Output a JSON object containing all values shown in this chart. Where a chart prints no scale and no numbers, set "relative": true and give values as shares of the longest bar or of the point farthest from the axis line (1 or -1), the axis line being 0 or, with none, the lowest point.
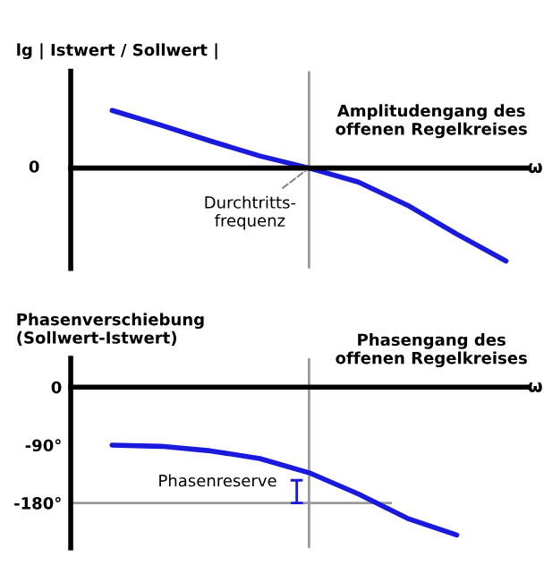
{
  "chart_data": [
    {
      "type": "line",
      "relative": true,
      "ylabel": "lg | Istwert / Sollwert |",
      "xlabel": "ω",
      "title": "Amplitudengang des\noffenen Regelkreises",
      "categories": [
        null,
        null,
        null,
        null,
        null,
        null,
        null,
        null,
        null
      ],
      "series": [
        {
          "color": "#1a1adc",
          "values": [
            0.62,
            0.46,
            0.29,
            0.13,
            0.0,
            -0.15,
            -0.4,
            -0.71,
            -1
          ]
        }
      ],
      "annotations": [
        "0",
        "Durchtritts-\nfrequenz"
      ]
    },
    {
      "type": "line",
      "ylabel": "Phasenverschiebung\n(Sollwert-Istwert)",
      "xlabel": "ω",
      "title": "Phasengang des\noffenen Regelkreises",
      "categories": [
        null,
        null,
        null,
        null,
        null,
        null,
        null,
        null,
        null
      ],
      "series": [
        {
          "color": "#1a1adc",
          "values": [
            -90,
            -92,
            -99,
            -111,
            -133,
            -166,
            -204,
            -230,
            null
          ]
        }
      ],
      "ylim": [
        -250,
        45
      ],
      "yticks": [
        {
          "value": -180,
          "label": "-180°"
        },
        {
          "value": -90,
          "label": "-90°"
        },
        0
      ],
      "ref_lines": [
        {
          "axis": "y",
          "value": -180,
          "color": "#999999"
        }
      ],
      "annotations": [
        "Phasenreserve"
      ]
    }
  ]
}
